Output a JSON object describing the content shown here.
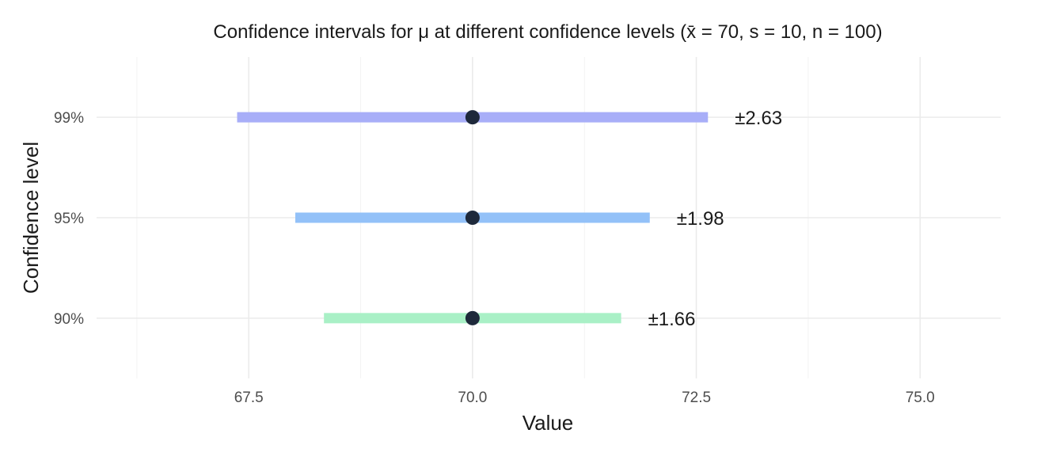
{
  "chart_data": {
    "type": "errorbar",
    "title": "Confidence intervals for μ at different confidence levels  (x̄ = 70, s = 10, n = 100)",
    "xlabel": "Value",
    "ylabel": "Confidence level",
    "xlim": [
      65.8,
      75.9
    ],
    "x_ticks": [
      "67.5",
      "70.0",
      "72.5",
      "75.0"
    ],
    "grid": true,
    "legend": "none",
    "categories": [
      "90%",
      "95%",
      "99%"
    ],
    "series": [
      {
        "level": "90%",
        "mean": 70.0,
        "lower": 68.34,
        "upper": 71.66,
        "label": "±1.66",
        "color": "#a9f0c6"
      },
      {
        "level": "95%",
        "mean": 70.0,
        "lower": 68.02,
        "upper": 71.98,
        "label": "±1.98",
        "color": "#93c1f8"
      },
      {
        "level": "99%",
        "mean": 70.0,
        "lower": 67.37,
        "upper": 72.63,
        "label": "±2.63",
        "color": "#a8aef8"
      }
    ],
    "point_color": "#1e293b"
  }
}
